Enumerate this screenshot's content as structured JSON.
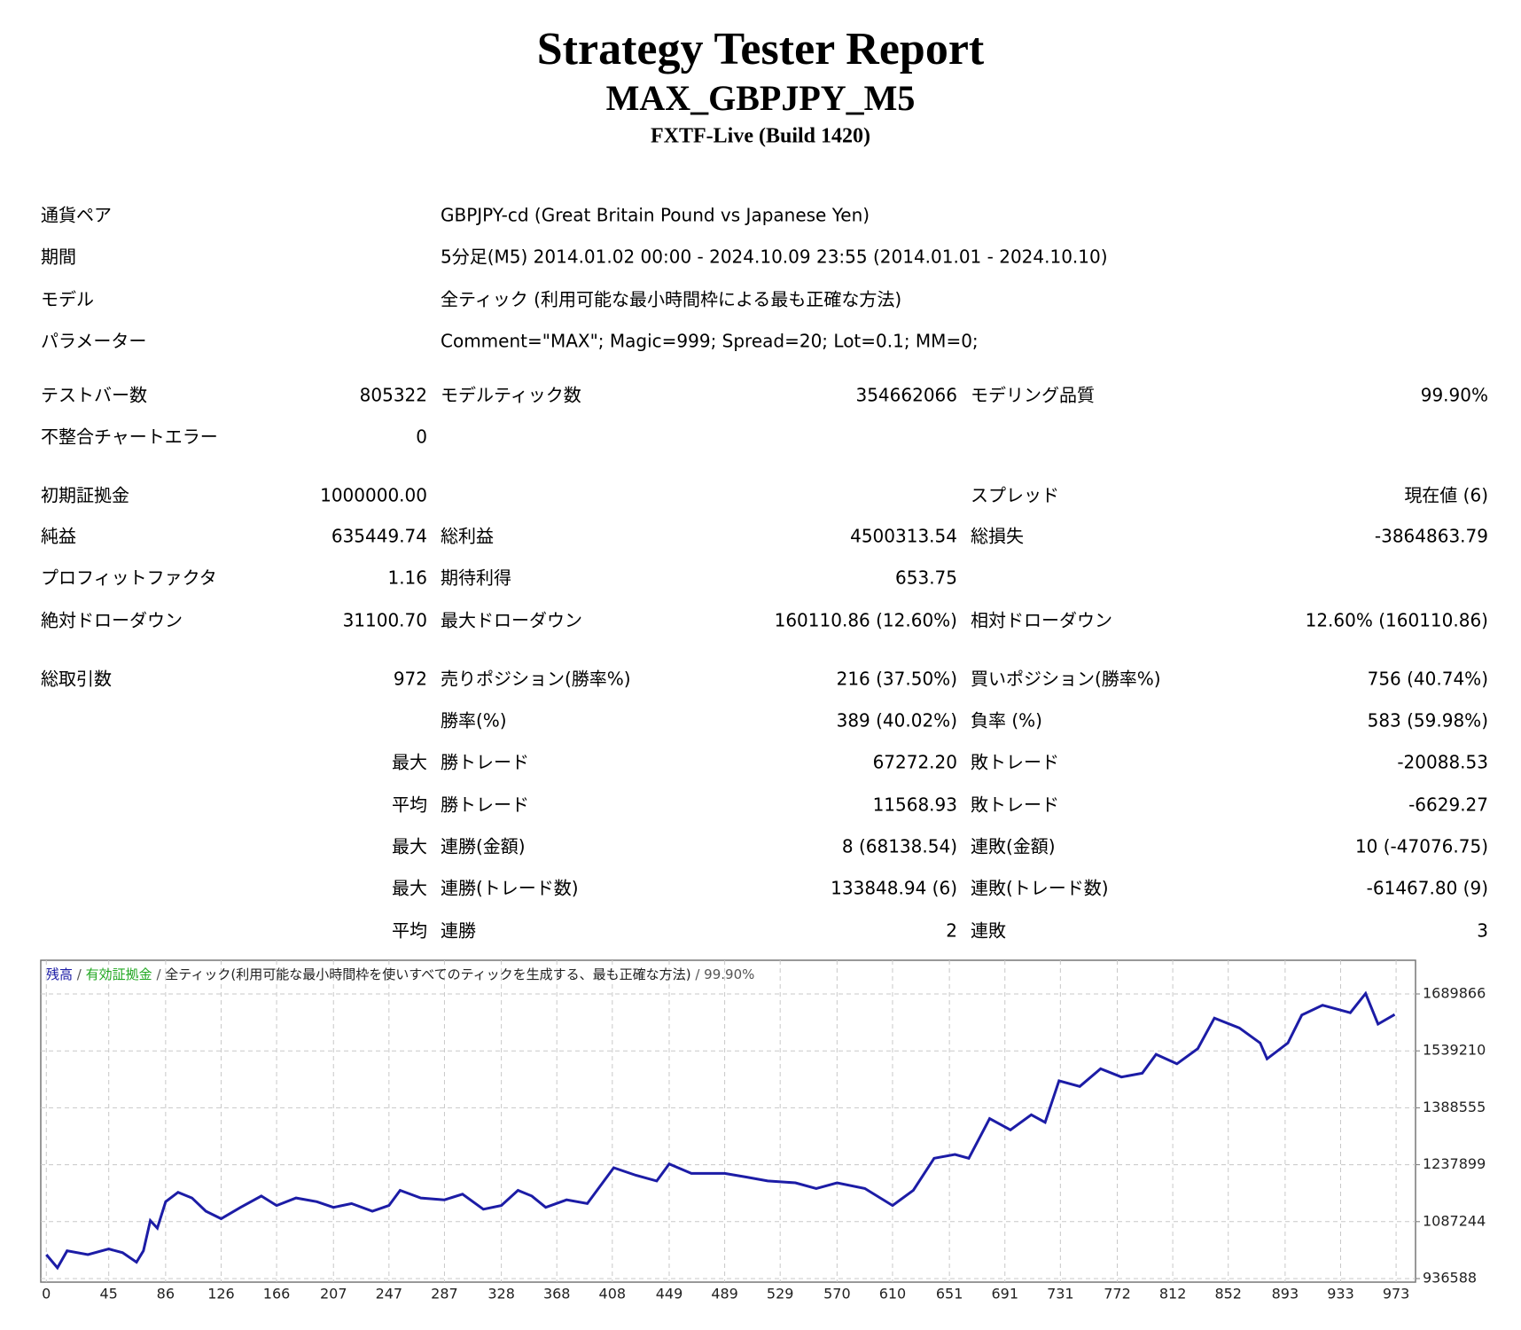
{
  "header": {
    "title": "Strategy Tester Report",
    "subtitle": "MAX_GBPJPY_M5",
    "server": "FXTF-Live (Build 1420)"
  },
  "info": [
    {
      "label": "通貨ペア",
      "value": "GBPJPY-cd (Great Britain Pound vs Japanese Yen)"
    },
    {
      "label": "期間",
      "value": "5分足(M5) 2014.01.02 00:00 - 2024.10.09 23:55 (2014.01.01 - 2024.10.10)"
    },
    {
      "label": "モデル",
      "value": "全ティック (利用可能な最小時間枠による最も正確な方法)"
    },
    {
      "label": "パラメーター",
      "value": "Comment=\"MAX\"; Magic=999; Spread=20; Lot=0.1; MM=0;"
    }
  ],
  "table": {
    "rows": [
      [
        "テストバー数",
        "805322",
        "モデルティック数",
        "354662066",
        "モデリング品質",
        "99.90%"
      ],
      [
        "不整合チャートエラー",
        "0",
        null,
        null,
        null,
        null
      ],
      [
        "初期証拠金",
        "1000000.00",
        null,
        null,
        "スプレッド",
        "現在値 (6)"
      ],
      [
        "純益",
        "635449.74",
        "総利益",
        "4500313.54",
        "総損失",
        "-3864863.79"
      ],
      [
        "プロフィットファクタ",
        "1.16",
        "期待利得",
        "653.75",
        null,
        null
      ],
      [
        "絶対ドローダウン",
        "31100.70",
        "最大ドローダウン",
        "160110.86 (12.60%)",
        "相対ドローダウン",
        "12.60% (160110.86)"
      ],
      [
        "総取引数",
        "972",
        "売りポジション(勝率%)",
        "216 (37.50%)",
        "買いポジション(勝率%)",
        "756 (40.74%)"
      ],
      [
        null,
        null,
        "勝率(%)",
        "389 (40.02%)",
        "負率 (%)",
        "583 (59.98%)"
      ],
      [
        null,
        "最大",
        "勝トレード",
        "67272.20",
        "敗トレード",
        "-20088.53"
      ],
      [
        null,
        "平均",
        "勝トレード",
        "11568.93",
        "敗トレード",
        "-6629.27"
      ],
      [
        null,
        "最大",
        "連勝(金額)",
        "8 (68138.54)",
        "連敗(金額)",
        "10 (-47076.75)"
      ],
      [
        null,
        "最大",
        "連勝(トレード数)",
        "133848.94 (6)",
        "連敗(トレード数)",
        "-61467.80 (9)"
      ],
      [
        null,
        "平均",
        "連勝",
        "2",
        "連敗",
        "3"
      ]
    ]
  },
  "chart_data": {
    "type": "line",
    "series": [
      {
        "name": "残高",
        "color": "#1c1ca6",
        "x": [
          0,
          8,
          15,
          30,
          45,
          55,
          65,
          70,
          75,
          80,
          86,
          95,
          105,
          115,
          126,
          140,
          155,
          166,
          180,
          195,
          207,
          220,
          235,
          247,
          255,
          270,
          287,
          300,
          315,
          328,
          340,
          350,
          360,
          375,
          390,
          409,
          425,
          440,
          449,
          465,
          489,
          505,
          520,
          540,
          555,
          570,
          590,
          610,
          625,
          640,
          655,
          665,
          680,
          695,
          710,
          720,
          730,
          745,
          760,
          775,
          790,
          800,
          815,
          830,
          842,
          860,
          875,
          880,
          895,
          905,
          920,
          940,
          951,
          960,
          972
        ],
        "values": [
          1000000,
          965000,
          1010000,
          1000000,
          1015000,
          1005000,
          980000,
          1010000,
          1090000,
          1070000,
          1140000,
          1165000,
          1150000,
          1115000,
          1095000,
          1125000,
          1155000,
          1130000,
          1150000,
          1140000,
          1125000,
          1135000,
          1115000,
          1130000,
          1170000,
          1150000,
          1145000,
          1160000,
          1120000,
          1130000,
          1170000,
          1155000,
          1125000,
          1145000,
          1135000,
          1230000,
          1210000,
          1195000,
          1240000,
          1215000,
          1215000,
          1205000,
          1195000,
          1190000,
          1175000,
          1190000,
          1175000,
          1130000,
          1170000,
          1255000,
          1265000,
          1255000,
          1360000,
          1330000,
          1370000,
          1350000,
          1460000,
          1445000,
          1492000,
          1470000,
          1480000,
          1530000,
          1505000,
          1545000,
          1626000,
          1600000,
          1560000,
          1518000,
          1560000,
          1634000,
          1660000,
          1640000,
          1691000,
          1610000,
          1635450
        ]
      }
    ],
    "legend_extra": [
      {
        "name": "有効証拠金",
        "color": "#22a822"
      }
    ],
    "legend_separator": "/",
    "legend_note": "全ティック(利用可能な最小時間枠を使いすべてのティックを生成する、最も正確な方法)",
    "legend_quality": "99.90%",
    "xlim": [
      -4,
      987
    ],
    "ylim": [
      936588,
      1779000
    ],
    "xticks": [
      0,
      45,
      86,
      126,
      166,
      207,
      247,
      287,
      328,
      368,
      408,
      449,
      489,
      529,
      570,
      610,
      651,
      691,
      731,
      772,
      812,
      852,
      893,
      933,
      973
    ],
    "yticks": [
      936588,
      1087244,
      1237899,
      1388555,
      1539210,
      1689866
    ],
    "grid": true
  }
}
